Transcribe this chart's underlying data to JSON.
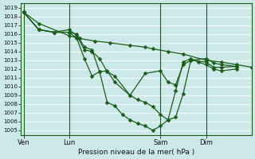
{
  "xlabel": "Pression niveau de la mer( hPa )",
  "bg_color": "#cce8e8",
  "grid_color": "#b0d4d4",
  "line_color": "#1a5c1a",
  "ylim": [
    1004.5,
    1019.5
  ],
  "yticks": [
    1005,
    1006,
    1007,
    1008,
    1009,
    1010,
    1011,
    1012,
    1013,
    1014,
    1015,
    1016,
    1017,
    1018,
    1019
  ],
  "xtick_labels": [
    "Ven",
    "Lun",
    "Sam",
    "Dim"
  ],
  "xtick_positions": [
    0,
    18,
    54,
    72
  ],
  "xlim": [
    -1,
    90
  ],
  "vline_positions": [
    0,
    18,
    54,
    72
  ],
  "lines": [
    {
      "x": [
        0,
        6,
        18,
        22,
        28,
        34,
        42,
        48,
        51,
        57,
        63,
        72,
        78,
        84,
        90
      ],
      "y": [
        1018.5,
        1017.2,
        1015.8,
        1015.5,
        1015.2,
        1015.0,
        1014.7,
        1014.5,
        1014.3,
        1014.0,
        1013.7,
        1013.0,
        1012.8,
        1012.5,
        1012.2
      ]
    },
    {
      "x": [
        0,
        6,
        12,
        18,
        21,
        24,
        27,
        30,
        33,
        36,
        42,
        48,
        54,
        57,
        60,
        63,
        66,
        72,
        75,
        78,
        84
      ],
      "y": [
        1018.5,
        1016.5,
        1016.2,
        1016.5,
        1015.8,
        1014.2,
        1014.0,
        1013.2,
        1011.7,
        1011.2,
        1009.0,
        1011.5,
        1011.8,
        1010.5,
        1010.2,
        1012.5,
        1013.0,
        1012.8,
        1012.2,
        1012.2,
        1012.3
      ]
    },
    {
      "x": [
        0,
        6,
        12,
        18,
        21,
        24,
        27,
        30,
        33,
        36,
        42,
        45,
        48,
        51,
        54,
        57,
        60,
        63,
        66,
        72,
        75,
        78,
        84
      ],
      "y": [
        1018.5,
        1016.5,
        1016.2,
        1016.2,
        1016.0,
        1014.5,
        1014.2,
        1011.7,
        1011.8,
        1010.5,
        1009.0,
        1008.5,
        1008.2,
        1007.7,
        1006.8,
        1006.2,
        1006.5,
        1009.2,
        1013.0,
        1013.2,
        1012.7,
        1012.5,
        1012.3
      ]
    },
    {
      "x": [
        0,
        6,
        12,
        18,
        21,
        24,
        27,
        30,
        33,
        36,
        39,
        42,
        45,
        48,
        51,
        54,
        57,
        60,
        63,
        66,
        69,
        72,
        75,
        78,
        84
      ],
      "y": [
        1018.5,
        1016.5,
        1016.2,
        1016.2,
        1015.5,
        1013.2,
        1011.2,
        1011.7,
        1008.2,
        1007.8,
        1006.8,
        1006.2,
        1005.8,
        1005.5,
        1005.0,
        1005.5,
        1006.2,
        1009.5,
        1012.8,
        1013.2,
        1012.8,
        1012.5,
        1012.0,
        1011.8,
        1012.0
      ]
    }
  ],
  "marker": "D",
  "markersize": 2.5,
  "linewidth": 0.9
}
